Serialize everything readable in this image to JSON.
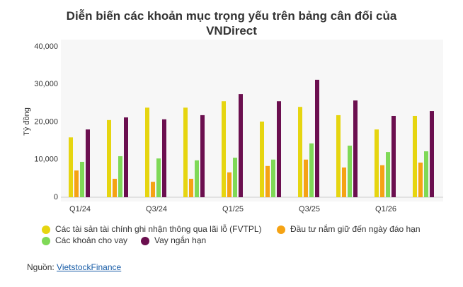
{
  "chart_data": {
    "type": "bar",
    "title": "Diễn biến các khoản mục trọng yếu trên bảng cân đối của VNDirect",
    "y_label": "Tỷ đồng",
    "categories": [
      "Q1/24",
      null,
      "Q3/24",
      null,
      "Q1/25",
      null,
      "Q3/25",
      null,
      "Q1/26",
      null
    ],
    "series": [
      {
        "name": "Các tài sản tài chính ghi nhận thông qua lãi lỗ (FVTPL)",
        "color": "#e6d510",
        "values": [
          15900,
          20500,
          23800,
          23800,
          25500,
          20100,
          24000,
          21800,
          18000,
          21600
        ]
      },
      {
        "name": "Đầu tư nắm giữ đến ngày đáo hạn",
        "color": "#f5a314",
        "values": [
          7100,
          4900,
          4100,
          4900,
          6600,
          8300,
          10000,
          7900,
          8500,
          9200
        ]
      },
      {
        "name": "Các khoản cho vay",
        "color": "#7fd957",
        "values": [
          9400,
          10900,
          10300,
          9800,
          10500,
          10000,
          14300,
          13700,
          12000,
          12200
        ]
      },
      {
        "name": "Vay ngắn hạn",
        "color": "#6b0f4f",
        "values": [
          18000,
          21200,
          20700,
          21800,
          27400,
          25500,
          31200,
          25700,
          21600,
          22900
        ]
      }
    ],
    "ylim": [
      0,
      40000
    ],
    "yticks": [
      0,
      {
        "value": 10000,
        "label": "10,000"
      },
      {
        "value": 20000,
        "label": "20,000"
      },
      {
        "value": 30000,
        "label": "30,000"
      },
      {
        "value": 40000,
        "label": "40,000"
      }
    ],
    "grid": false,
    "source_label": "Nguồn:",
    "source_link": "VietstockFinance"
  }
}
